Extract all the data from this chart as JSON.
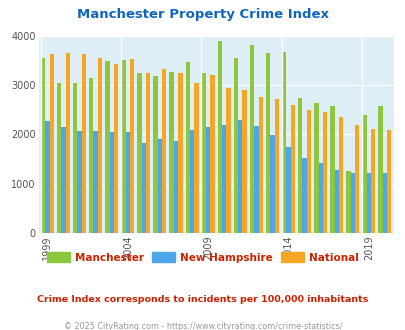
{
  "title": "Manchester Property Crime Index",
  "subtitle": "Crime Index corresponds to incidents per 100,000 inhabitants",
  "footer": "© 2025 CityRating.com - https://www.cityrating.com/crime-statistics/",
  "years": [
    1999,
    2000,
    2001,
    2002,
    2003,
    2004,
    2005,
    2006,
    2007,
    2008,
    2009,
    2010,
    2011,
    2012,
    2013,
    2014,
    2015,
    2016,
    2017,
    2018,
    2019,
    2020
  ],
  "manchester": [
    3560,
    3040,
    3040,
    3150,
    3500,
    3510,
    3250,
    3200,
    3270,
    3480,
    3250,
    3900,
    3560,
    3820,
    3650,
    3690,
    2750,
    2640,
    2590,
    1250,
    2390,
    2590
  ],
  "new_hampshire": [
    2280,
    2160,
    2070,
    2070,
    2060,
    2060,
    1820,
    1900,
    1870,
    2100,
    2160,
    2190,
    2300,
    2180,
    1980,
    1750,
    1520,
    1410,
    1280,
    1220,
    1210,
    1220
  ],
  "national": [
    3640,
    3660,
    3640,
    3550,
    3440,
    3530,
    3250,
    3340,
    3260,
    3050,
    3210,
    2950,
    2900,
    2760,
    2720,
    2600,
    2490,
    2460,
    2360,
    2200,
    2110,
    2090
  ],
  "color_manchester": "#8dc63f",
  "color_nh": "#4da6e8",
  "color_national": "#f5a623",
  "bg_color": "#ddeef6",
  "title_color": "#1166bb",
  "subtitle_color": "#cc2200",
  "footer_color": "#999999",
  "ylim": [
    0,
    4000
  ],
  "yticks": [
    0,
    1000,
    2000,
    3000,
    4000
  ],
  "label_years": [
    1999,
    2004,
    2009,
    2014,
    2019
  ]
}
